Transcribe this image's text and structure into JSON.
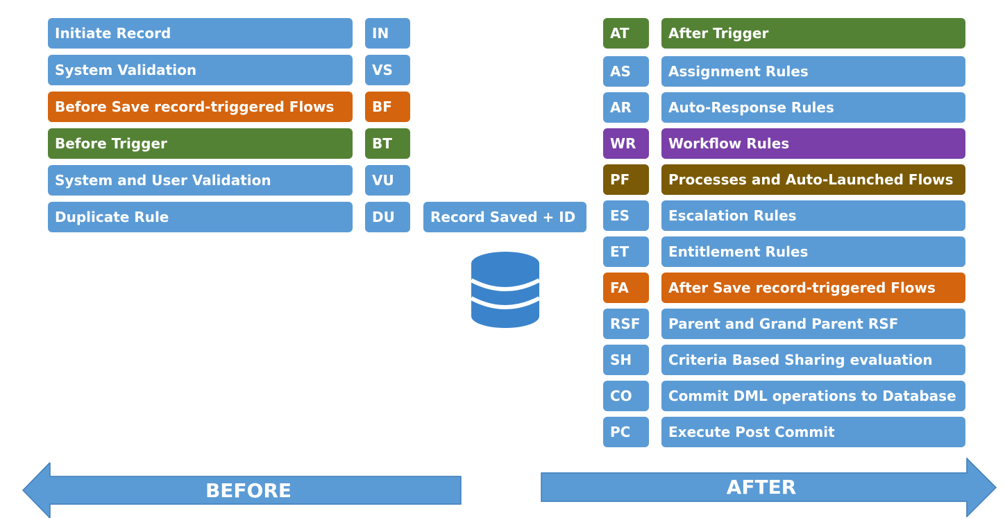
{
  "colors": {
    "blue": "#5B9BD5",
    "orange": "#D5640E",
    "green": "#548235",
    "purple": "#7A3FA8",
    "brown": "#7A5A06"
  },
  "before_steps": [
    {
      "label": "Initiate Record",
      "code": "IN",
      "color": "blue"
    },
    {
      "label": "System Validation",
      "code": "VS",
      "color": "blue"
    },
    {
      "label": "Before Save record-triggered Flows",
      "code": "BF",
      "color": "orange"
    },
    {
      "label": "Before Trigger",
      "code": "BT",
      "color": "green"
    },
    {
      "label": "System and User Validation",
      "code": "VU",
      "color": "blue"
    },
    {
      "label": "Duplicate Rule",
      "code": "DU",
      "color": "blue"
    }
  ],
  "record_saved": {
    "label": "Record Saved + ID"
  },
  "database": {
    "icon": "database-icon"
  },
  "after_steps": [
    {
      "code": "AT",
      "label": "After Trigger",
      "color": "green"
    },
    {
      "code": "AS",
      "label": "Assignment Rules",
      "color": "blue"
    },
    {
      "code": "AR",
      "label": "Auto-Response Rules",
      "color": "blue"
    },
    {
      "code": "WR",
      "label": "Workflow Rules",
      "color": "purple"
    },
    {
      "code": "PF",
      "label": "Processes and Auto-Launched Flows",
      "color": "brown"
    },
    {
      "code": "ES",
      "label": "Escalation Rules",
      "color": "blue"
    },
    {
      "code": "ET",
      "label": "Entitlement Rules",
      "color": "blue"
    },
    {
      "code": "FA",
      "label": "After Save record-triggered Flows",
      "color": "orange"
    },
    {
      "code": "RSF",
      "label": "Parent and Grand Parent RSF",
      "color": "blue"
    },
    {
      "code": "SH",
      "label": "Criteria Based Sharing evaluation",
      "color": "blue"
    },
    {
      "code": "CO",
      "label": "Commit DML operations to Database",
      "color": "blue"
    },
    {
      "code": "PC",
      "label": "Execute Post Commit",
      "color": "blue"
    }
  ],
  "arrows": {
    "before": {
      "label": "BEFORE",
      "direction": "left"
    },
    "after": {
      "label": "AFTER",
      "direction": "right"
    }
  }
}
